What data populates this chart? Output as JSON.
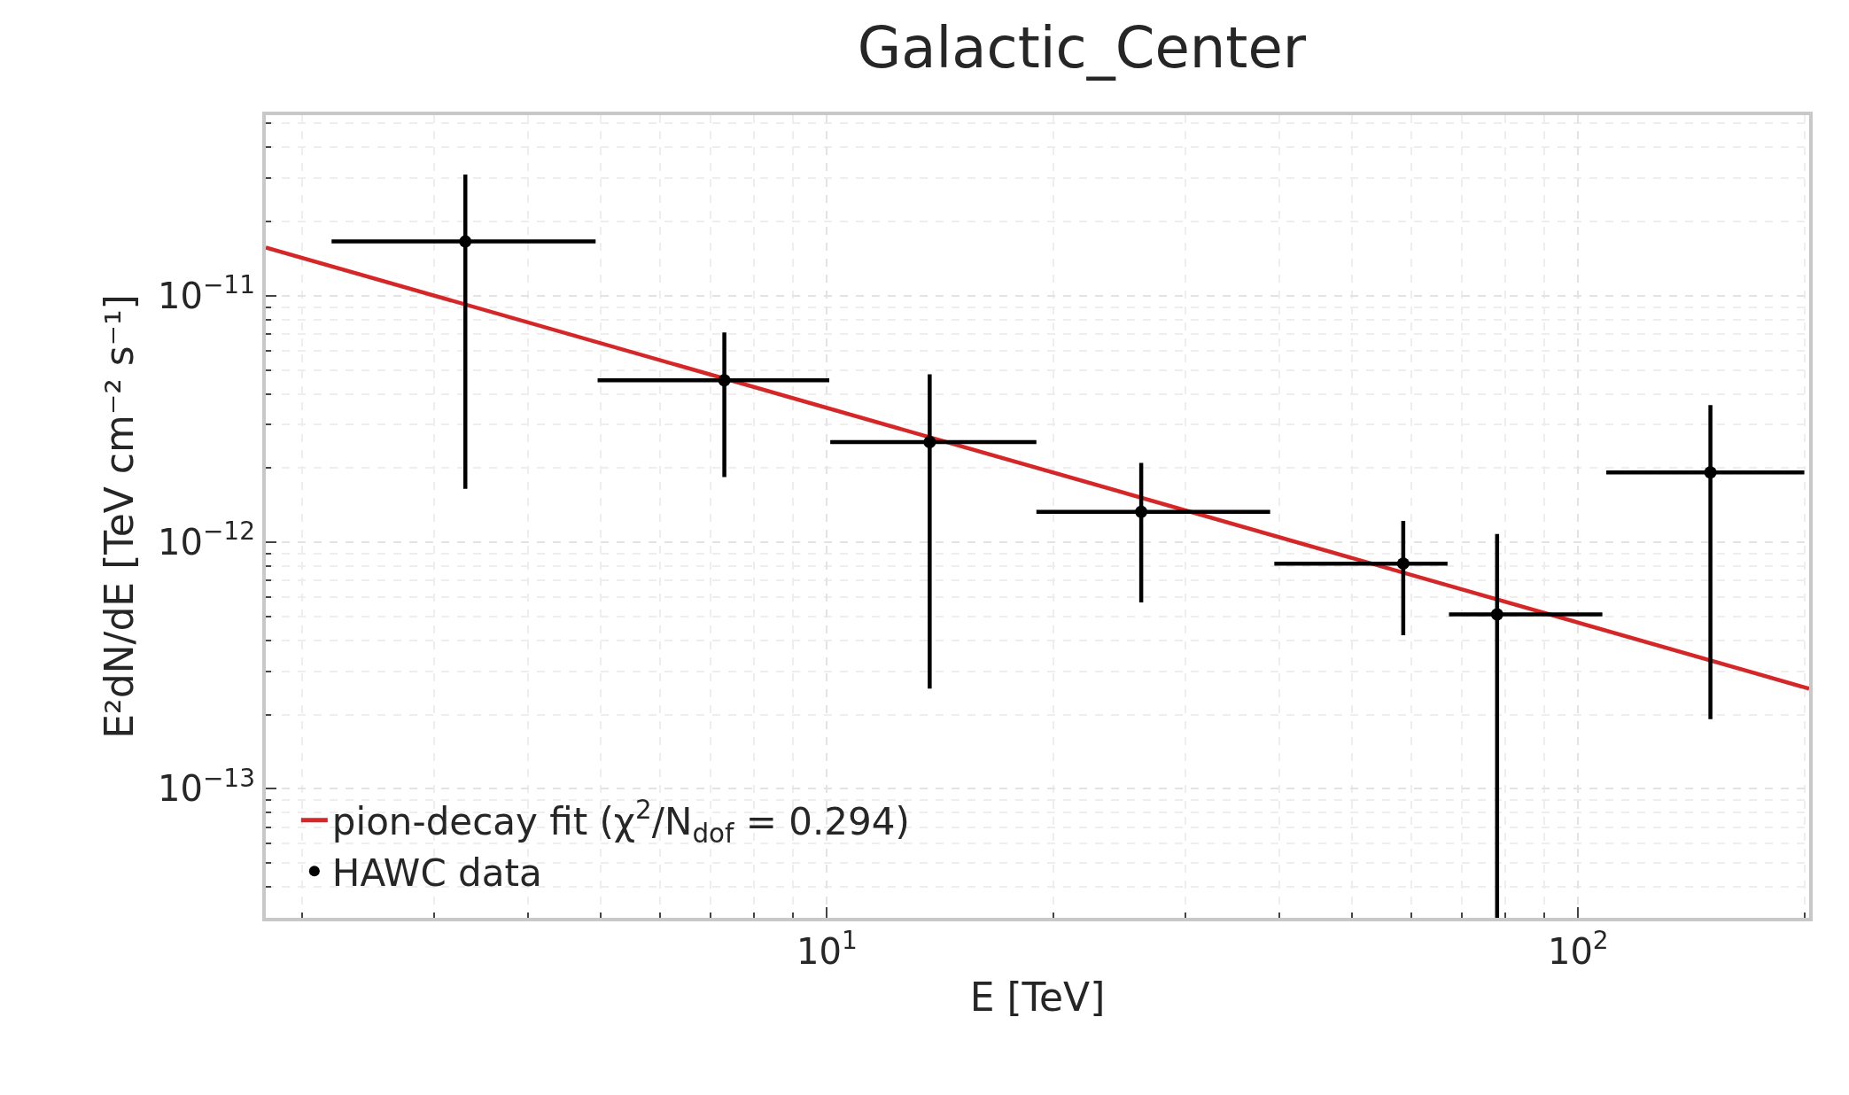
{
  "chart_data": {
    "type": "scatter",
    "title": "Galactic_Center",
    "xlabel": "E [TeV]",
    "ylabel": "E²dN/dE [TeV cm⁻² s⁻¹]",
    "log": "xy",
    "grid": true,
    "legend": "bottom left",
    "xlim": [
      1.79,
      203
    ],
    "ylim": [
      3e-14,
      5.4e-11
    ],
    "xticks": [
      {
        "value": 10,
        "label": "10$^{1}$"
      },
      {
        "value": 100,
        "label": "10$^{2}$"
      }
    ],
    "yticks": [
      {
        "value": 1e-13,
        "label": "10$^{−13}$"
      },
      {
        "value": 1e-12,
        "label": "10$^{−12}$"
      },
      {
        "value": 1e-11,
        "label": "10$^{−11}$"
      }
    ],
    "series": [
      {
        "name": "pion-decay fit (χ$^{2}$/N$_{dof}$ = 0.294)",
        "type": "line",
        "color": "#d62728",
        "line_style": "solid",
        "marker": "none",
        "x": [
          1.79,
          203
        ],
        "values": [
          1.57e-11,
          2.55e-13
        ]
      },
      {
        "name": "HAWC data",
        "color": "#000000",
        "marker": "circle",
        "x": [
          3.3,
          7.3,
          13.7,
          26.2,
          58.5,
          78,
          150
        ],
        "values": [
          1.66e-11,
          4.54e-12,
          2.55e-12,
          1.33e-12,
          8.2e-13,
          5.1e-13,
          1.92e-12
        ],
        "errors": [
          [
            1.65e-12,
            3.1e-11
          ],
          [
            1.84e-12,
            7.1e-12
          ],
          [
            2.55e-13,
            4.8e-12
          ],
          [
            5.7e-13,
            2.1e-12
          ],
          [
            4.2e-13,
            1.22e-12
          ],
          [
            3e-14,
            1.08e-12
          ],
          [
            1.92e-13,
            3.6e-12
          ]
        ],
        "xerrors": [
          [
            2.19,
            4.92
          ],
          [
            4.95,
            10.07
          ],
          [
            10.1,
            19.0
          ],
          [
            19.0,
            38.9
          ],
          [
            39.4,
            67
          ],
          [
            67.3,
            107.7
          ],
          [
            109,
            200
          ]
        ]
      }
    ]
  }
}
